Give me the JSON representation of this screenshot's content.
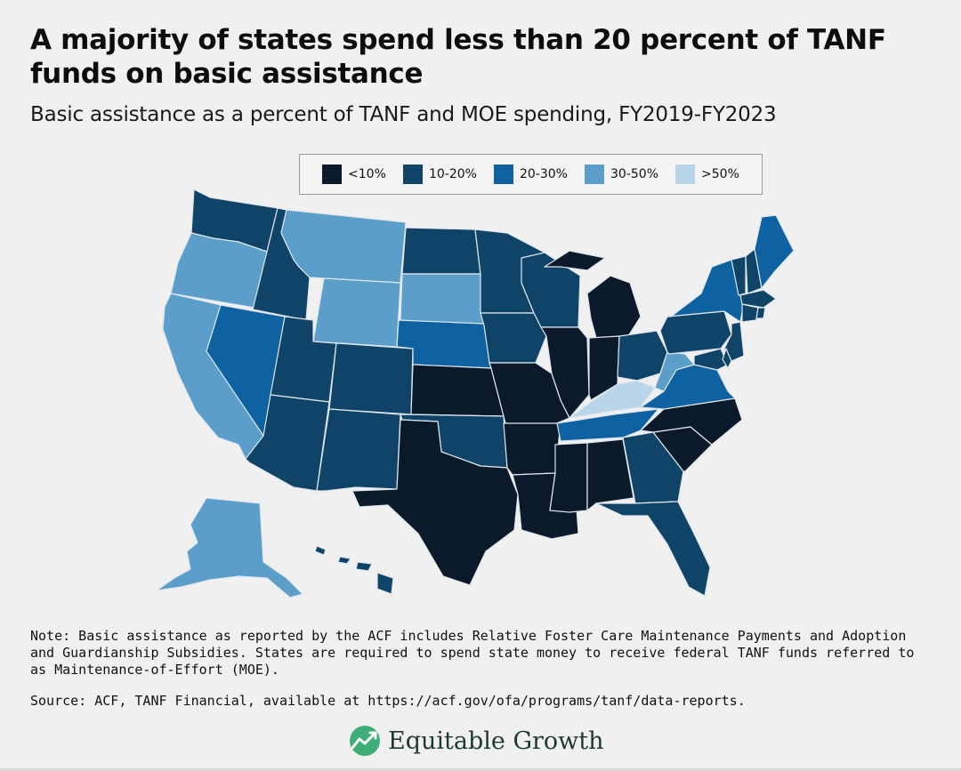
{
  "title": "A majority of states spend less than 20 percent of TANF funds on basic assistance",
  "subtitle": "Basic assistance as a percent of TANF and MOE spending, FY2019-FY2023",
  "legend": [
    {
      "label": "<10%",
      "color": "#0a1a2a"
    },
    {
      "label": "10-20%",
      "color": "#0f4468"
    },
    {
      "label": "20-30%",
      "color": "#0f62a1"
    },
    {
      "label": "30-50%",
      "color": "#5a9ec9"
    },
    {
      "label": ">50%",
      "color": "#b8d5ea"
    }
  ],
  "states": {
    "WA": "10-20%",
    "OR": "30-50%",
    "CA": "30-50%",
    "ID": "10-20%",
    "NV": "20-30%",
    "MT": "30-50%",
    "WY": "30-50%",
    "UT": "10-20%",
    "AZ": "10-20%",
    "CO": "10-20%",
    "NM": "10-20%",
    "ND": "10-20%",
    "SD": "30-50%",
    "NE": "20-30%",
    "KS": "<10%",
    "OK": "10-20%",
    "TX": "<10%",
    "MN": "10-20%",
    "IA": "10-20%",
    "MO": "<10%",
    "AR": "<10%",
    "LA": "<10%",
    "WI": "10-20%",
    "IL": "<10%",
    "MI": "<10%",
    "IN": "<10%",
    "OH": "10-20%",
    "KY": ">50%",
    "TN": "20-30%",
    "MS": "<10%",
    "AL": "<10%",
    "GA": "10-20%",
    "FL": "10-20%",
    "SC": "<10%",
    "NC": "<10%",
    "VA": "20-30%",
    "WV": "30-50%",
    "PA": "10-20%",
    "NY": "20-30%",
    "ME": "20-30%",
    "AK": "30-50%",
    "HI": "10-20%"
  },
  "note": "Note: Basic assistance as reported by the ACF includes Relative Foster Care Maintenance Payments and Adoption and Guardianship Subsidies. States are required to  spend state money to receive federal TANF funds referred to as Maintenance-of-Effort (MOE).",
  "source": "Source: ACF, TANF Financial, available at https://acf.gov/ofa/programs/tanf/data-reports.",
  "brand": "Equitable Growth"
}
